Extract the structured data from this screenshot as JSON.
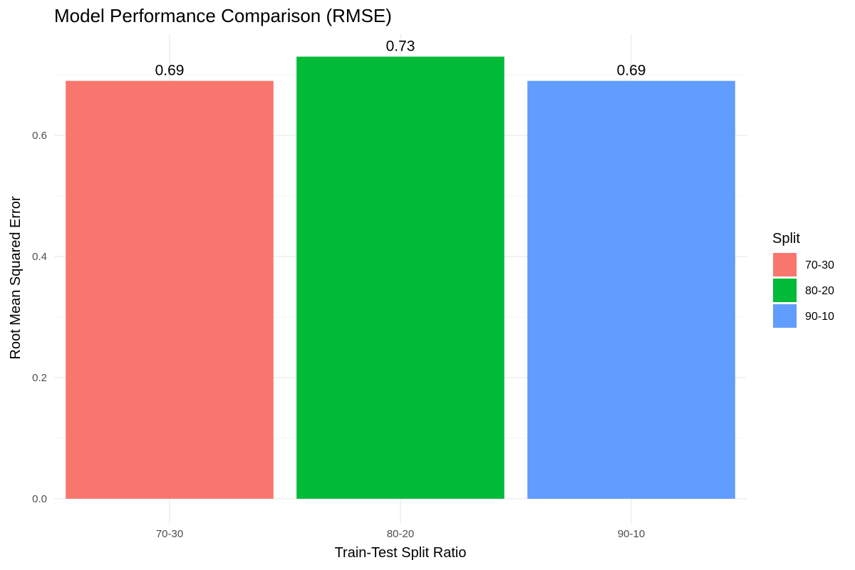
{
  "chart_data": {
    "type": "bar",
    "title": "Model Performance Comparison (RMSE)",
    "xlabel": "Train-Test Split Ratio",
    "ylabel": "Root Mean Squared Error",
    "categories": [
      "70-30",
      "80-20",
      "90-10"
    ],
    "values": [
      0.69,
      0.73,
      0.69
    ],
    "data_labels": [
      "0.69",
      "0.73",
      "0.69"
    ],
    "colors": [
      "#F8766D",
      "#00BA38",
      "#619CFF"
    ],
    "ylim": [
      0,
      0.765
    ],
    "yticks": [
      0.0,
      0.2,
      0.4,
      0.6
    ],
    "ytick_labels": [
      "0.0",
      "0.2",
      "0.4",
      "0.6"
    ],
    "grid": true,
    "legend": {
      "title": "Split",
      "position": "right",
      "entries": [
        "70-30",
        "80-20",
        "90-10"
      ]
    }
  }
}
